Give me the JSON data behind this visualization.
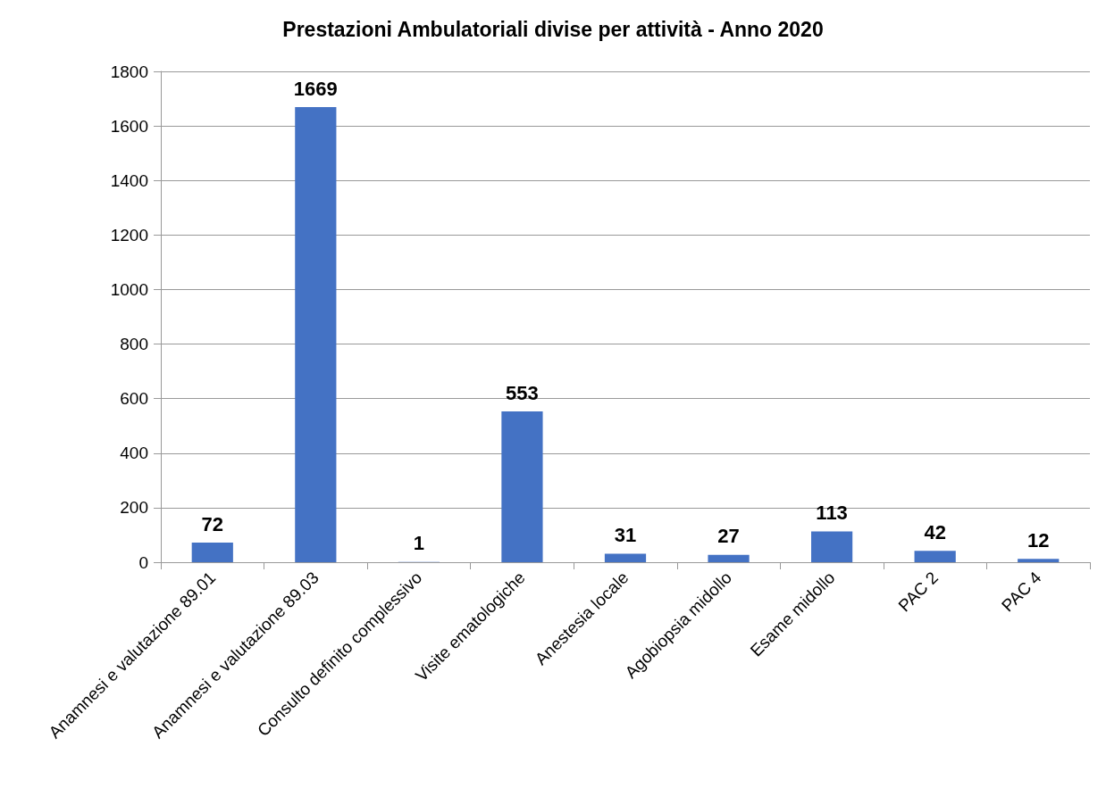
{
  "chart_data": {
    "type": "bar",
    "title": "Prestazioni Ambulatoriali divise per attività - Anno 2020",
    "categories": [
      "Anamnesi e valutazione 89.01",
      "Anamnesi e valutazione 89.03",
      "Consulto definito complessivo",
      "Visite ematologiche",
      "Anestesia locale",
      "Agobiopsia midollo",
      "Esame midollo",
      "PAC 2",
      "PAC 4"
    ],
    "values": [
      72,
      1669,
      1,
      553,
      31,
      27,
      113,
      42,
      12
    ],
    "color": "#4472c4",
    "ylim": [
      0,
      1800
    ],
    "yticks": [
      0,
      200,
      400,
      600,
      800,
      1000,
      1200,
      1400,
      1600,
      1800
    ],
    "grid": "y",
    "data_labels": true
  }
}
